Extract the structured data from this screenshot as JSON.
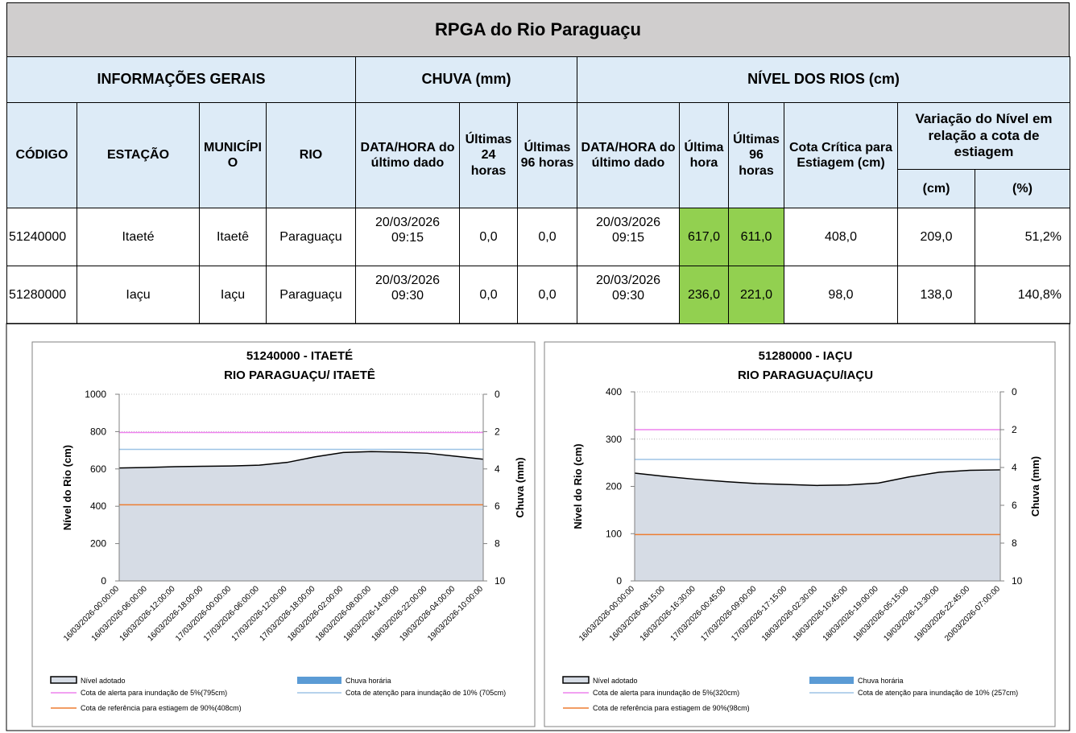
{
  "table": {
    "title": "RPGA do Rio Paraguaçu",
    "groups": [
      "INFORMAÇÕES GERAIS",
      "CHUVA (mm)",
      "NÍVEL DOS RIOS (cm)"
    ],
    "headers": [
      "CÓDIGO",
      "ESTAÇÃO",
      "MUNICÍPIO",
      "RIO",
      "DATA/HORA do último dado",
      "Últimas 24 horas",
      "Últimas 96 horas",
      "DATA/HORA do último dado",
      "Última hora",
      "Últimas 96 horas",
      "Cota Crítica para Estiagem (cm)",
      "Variação do Nível em relação a cota de estiagem"
    ],
    "subheaders": [
      "(cm)",
      "(%)"
    ],
    "rows": [
      [
        "51240000",
        "Itaeté",
        "Itaetê",
        "Paraguaçu",
        "20/03/2026 09:15",
        "0,0",
        "0,0",
        "20/03/2026 09:15",
        "617,0",
        "611,0",
        "408,0",
        "209,0",
        "51,2%"
      ],
      [
        "51280000",
        "Iaçu",
        "Iaçu",
        "Paraguaçu",
        "20/03/2026 09:30",
        "0,0",
        "0,0",
        "20/03/2026 09:30",
        "236,0",
        "221,0",
        "98,0",
        "138,0",
        "140,8%"
      ]
    ]
  },
  "chart_data": [
    {
      "type": "area",
      "title": "51240000 - ITAETÉ",
      "subtitle": "RIO PARAGUAÇU/ ITAETÊ",
      "ylabel": "Nível do Rio (cm)",
      "y2label": "Chuva (mm)",
      "categories": [
        "16/03/2026-00:00:00",
        "16/03/2026-06:00:00",
        "16/03/2026-12:00:00",
        "16/03/2026-18:00:00",
        "17/03/2026-00:00:00",
        "17/03/2026-06:00:00",
        "17/03/2026-12:00:00",
        "17/03/2026-18:00:00",
        "18/03/2026-02:00:00",
        "18/03/2026-08:00:00",
        "18/03/2026-14:00:00",
        "18/03/2026-22:00:00",
        "19/03/2026-04:00:00",
        "19/03/2026-10:00:00"
      ],
      "series": [
        {
          "name": "Nível adotado",
          "color": "#d6dce5",
          "values": [
            605,
            608,
            612,
            614,
            616,
            620,
            635,
            665,
            688,
            693,
            690,
            684,
            668,
            652
          ]
        },
        {
          "name": "Chuva horária",
          "color": "#5b9bd5",
          "axis": "y2"
        }
      ],
      "reference_lines": [
        {
          "name": "Cota de alerta para inundação de 5%(795cm)",
          "color": "#ee82ee",
          "value": 795
        },
        {
          "name": "Cota de atenção para inundação de 10% (705cm)",
          "color": "#9dc3e6",
          "value": 705
        },
        {
          "name": "Cota de referência para estiagem de 90%(408cm)",
          "color": "#ed7d31",
          "value": 408
        }
      ],
      "ylim": [
        0,
        1000
      ],
      "yticks": [
        0,
        200,
        400,
        600,
        800,
        1000
      ],
      "y2lim": [
        10,
        0
      ],
      "y2ticks": [
        0,
        2,
        4,
        6,
        8,
        10
      ],
      "grid": true
    },
    {
      "type": "area",
      "title": "51280000 - IAÇU",
      "subtitle": "RIO PARAGUAÇU/IAÇU",
      "ylabel": "Nível do Rio (cm)",
      "y2label": "Chuva (mm)",
      "categories": [
        "16/03/2026-00:00:00",
        "16/03/2026-08:15:00",
        "16/03/2026-16:30:00",
        "17/03/2026-00:45:00",
        "17/03/2026-09:00:00",
        "17/03/2026-17:15:00",
        "18/03/2026-02:30:00",
        "18/03/2026-10:45:00",
        "18/03/2026-19:00:00",
        "19/03/2026-05:15:00",
        "19/03/2026-13:30:00",
        "19/03/2026-22:45:00",
        "20/03/2026-07:00:00"
      ],
      "series": [
        {
          "name": "Nível adotado",
          "color": "#d6dce5",
          "values": [
            228,
            221,
            215,
            210,
            206,
            204,
            202,
            203,
            207,
            220,
            230,
            234,
            235
          ]
        },
        {
          "name": "Chuva horária",
          "color": "#5b9bd5",
          "axis": "y2"
        }
      ],
      "reference_lines": [
        {
          "name": "Cota de alerta para inundação de 5%(320cm)",
          "color": "#ee82ee",
          "value": 320
        },
        {
          "name": "Cota de atenção para inundação de 10% (257cm)",
          "color": "#9dc3e6",
          "value": 257
        },
        {
          "name": "Cota de referência para estiagem de 90%(98cm)",
          "color": "#ed7d31",
          "value": 98
        }
      ],
      "ylim": [
        0,
        400
      ],
      "yticks": [
        0,
        100,
        200,
        300,
        400
      ],
      "y2lim": [
        10,
        0
      ],
      "y2ticks": [
        0,
        2,
        4,
        6,
        8,
        10
      ],
      "grid": true
    }
  ]
}
